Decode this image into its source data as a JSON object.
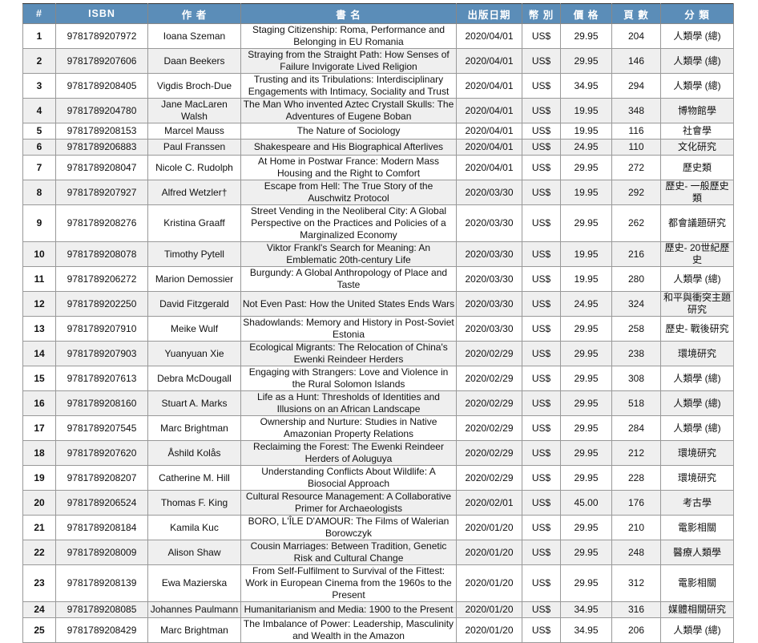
{
  "colors": {
    "header_bg": "#5b8db8",
    "alt_row": "#efefef"
  },
  "headers": [
    "#",
    "ISBN",
    "作 者",
    "書 名",
    "出版日期",
    "幣 別",
    "價 格",
    "頁 數",
    "分 類"
  ],
  "rows": [
    [
      "1",
      "9781789207972",
      "Ioana Szeman",
      "Staging Citizenship: Roma, Performance and Belonging in EU Romania",
      "2020/04/01",
      "US$",
      "29.95",
      "204",
      "人類學 (總)"
    ],
    [
      "2",
      "9781789207606",
      "Daan Beekers",
      "Straying from the Straight Path: How Senses of Failure Invigorate Lived Religion",
      "2020/04/01",
      "US$",
      "29.95",
      "146",
      "人類學 (總)"
    ],
    [
      "3",
      "9781789208405",
      "Vigdis Broch-Due",
      "Trusting and its Tribulations: Interdisciplinary Engagements with Intimacy, Sociality and Trust",
      "2020/04/01",
      "US$",
      "34.95",
      "294",
      "人類學 (總)"
    ],
    [
      "4",
      "9781789204780",
      "Jane MacLaren Walsh",
      "The Man Who invented Aztec Crystall Skulls: The Adventures of Eugene Boban",
      "2020/04/01",
      "US$",
      "19.95",
      "348",
      "博物館學"
    ],
    [
      "5",
      "9781789208153",
      "Marcel Mauss",
      "The Nature of Sociology",
      "2020/04/01",
      "US$",
      "19.95",
      "116",
      "社會學"
    ],
    [
      "6",
      "9781789206883",
      "Paul Franssen",
      "Shakespeare and His Biographical Afterlives",
      "2020/04/01",
      "US$",
      "24.95",
      "110",
      "文化研究"
    ],
    [
      "7",
      "9781789208047",
      "Nicole C. Rudolph",
      "At Home in Postwar France: Modern Mass Housing and the Right to Comfort",
      "2020/04/01",
      "US$",
      "29.95",
      "272",
      "歷史類"
    ],
    [
      "8",
      "9781789207927",
      "Alfred Wetzler†",
      "Escape from Hell: The True Story of the Auschwitz Protocol",
      "2020/03/30",
      "US$",
      "19.95",
      "292",
      "歷史- 一般歷史類"
    ],
    [
      "9",
      "9781789208276",
      "Kristina Graaff",
      "Street Vending in the Neoliberal City: A Global Perspective on the Practices and Policies of a Marginalized Economy",
      "2020/03/30",
      "US$",
      "29.95",
      "262",
      "都會議題研究"
    ],
    [
      "10",
      "9781789208078",
      "Timothy Pytell",
      "Viktor Frankl's Search for Meaning: An Emblematic 20th-century Life",
      "2020/03/30",
      "US$",
      "19.95",
      "216",
      "歷史- 20世紀歷史"
    ],
    [
      "11",
      "9781789206272",
      "Marion Demossier",
      "Burgundy: A Global Anthropology of Place and Taste",
      "2020/03/30",
      "US$",
      "19.95",
      "280",
      "人類學 (總)"
    ],
    [
      "12",
      "9781789202250",
      "David Fitzgerald",
      "Not Even Past: How the United States Ends Wars",
      "2020/03/30",
      "US$",
      "24.95",
      "324",
      "和平與衝突主題研究"
    ],
    [
      "13",
      "9781789207910",
      "Meike Wulf",
      "Shadowlands: Memory and History in Post-Soviet Estonia",
      "2020/03/30",
      "US$",
      "29.95",
      "258",
      "歷史- 戰後研究"
    ],
    [
      "14",
      "9781789207903",
      "Yuanyuan Xie",
      "Ecological Migrants: The Relocation of China's Ewenki Reindeer Herders",
      "2020/02/29",
      "US$",
      "29.95",
      "238",
      "環境研究"
    ],
    [
      "15",
      "9781789207613",
      "Debra McDougall",
      "Engaging with Strangers: Love and Violence in the Rural Solomon Islands",
      "2020/02/29",
      "US$",
      "29.95",
      "308",
      "人類學 (總)"
    ],
    [
      "16",
      "9781789208160",
      "Stuart A. Marks",
      "Life as a Hunt: Thresholds of Identities and Illusions on an African Landscape",
      "2020/02/29",
      "US$",
      "29.95",
      "518",
      "人類學 (總)"
    ],
    [
      "17",
      "9781789207545",
      "Marc Brightman",
      "Ownership and Nurture: Studies in Native Amazonian Property Relations",
      "2020/02/29",
      "US$",
      "29.95",
      "284",
      "人類學 (總)"
    ],
    [
      "18",
      "9781789207620",
      "Åshild Kolås",
      "Reclaiming the Forest: The Ewenki Reindeer Herders of Aoluguya",
      "2020/02/29",
      "US$",
      "29.95",
      "212",
      "環境研究"
    ],
    [
      "19",
      "9781789208207",
      "Catherine M. Hill",
      "Understanding Conflicts About Wildlife: A Biosocial Approach",
      "2020/02/29",
      "US$",
      "29.95",
      "228",
      "環境研究"
    ],
    [
      "20",
      "9781789206524",
      "Thomas F. King",
      "Cultural Resource Management: A Collaborative Primer for Archaeologists",
      "2020/02/01",
      "US$",
      "45.00",
      "176",
      "考古學"
    ],
    [
      "21",
      "9781789208184",
      "Kamila Kuc",
      "BORO, L'ÎLE D'AMOUR: The Films of Walerian Borowczyk",
      "2020/01/20",
      "US$",
      "29.95",
      "210",
      "電影相關"
    ],
    [
      "22",
      "9781789208009",
      "Alison Shaw",
      "Cousin Marriages: Between Tradition, Genetic Risk and Cultural Change",
      "2020/01/20",
      "US$",
      "29.95",
      "248",
      "醫療人類學"
    ],
    [
      "23",
      "9781789208139",
      "Ewa Mazierska",
      "From Self-Fulfilment to Survival of the Fittest: Work in European Cinema from the 1960s to the Present",
      "2020/01/20",
      "US$",
      "29.95",
      "312",
      "電影相關"
    ],
    [
      "24",
      "9781789208085",
      "Johannes Paulmann",
      "Humanitarianism and Media: 1900 to the Present",
      "2020/01/20",
      "US$",
      "34.95",
      "316",
      "媒體相關研究"
    ],
    [
      "25",
      "9781789208429",
      "Marc Brightman",
      "The Imbalance of Power: Leadership, Masculinity and Wealth in the Amazon",
      "2020/01/20",
      "US$",
      "34.95",
      "206",
      "人類學 (總)"
    ]
  ]
}
